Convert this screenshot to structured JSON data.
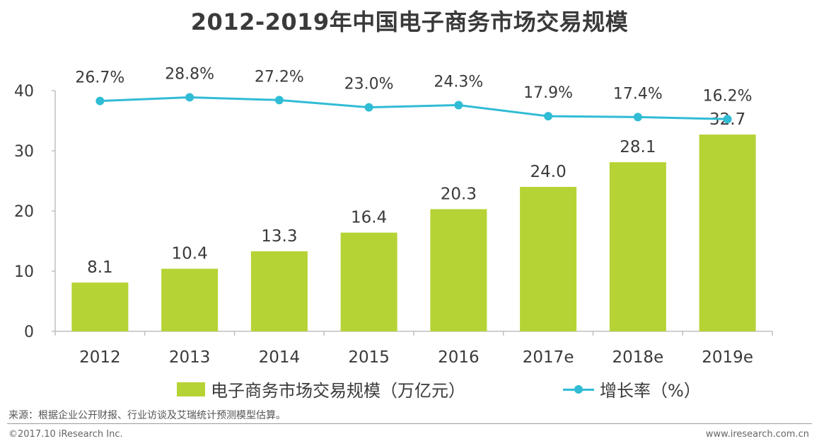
{
  "chart_data": {
    "type": "bar",
    "title": "2012-2019年中国电子商务市场交易规模",
    "categories": [
      "2012",
      "2013",
      "2014",
      "2015",
      "2016",
      "2017e",
      "2018e",
      "2019e"
    ],
    "series": [
      {
        "name": "电子商务市场交易规模（万亿元）",
        "type": "bar",
        "color": "#b5d334",
        "values": [
          8.1,
          10.4,
          13.3,
          16.4,
          20.3,
          24.0,
          28.1,
          32.7
        ],
        "labels": [
          "8.1",
          "10.4",
          "13.3",
          "16.4",
          "20.3",
          "24.0",
          "28.1",
          "32.7"
        ]
      },
      {
        "name": "增长率（%）",
        "type": "line",
        "color": "#31bcd5",
        "values": [
          26.7,
          28.8,
          27.2,
          23.0,
          24.3,
          17.9,
          17.4,
          16.2
        ],
        "labels": [
          "26.7%",
          "28.8%",
          "27.2%",
          "23.0%",
          "24.3%",
          "17.9%",
          "17.4%",
          "16.2%"
        ]
      }
    ],
    "yticks": [
      0,
      10,
      20,
      30,
      40
    ],
    "ylim": [
      0,
      40
    ],
    "xlabel": "",
    "ylabel": "",
    "legend": "bottom"
  },
  "legend": {
    "bar_label": "电子商务市场交易规模（万亿元）",
    "line_label": "增长率（%）"
  },
  "footer": {
    "source": "来源：根据企业公开财报、行业访谈及艾瑞统计预测模型估算。",
    "copyright": "©2017.10 iResearch Inc.",
    "website": "www.iresearch.com.cn"
  }
}
